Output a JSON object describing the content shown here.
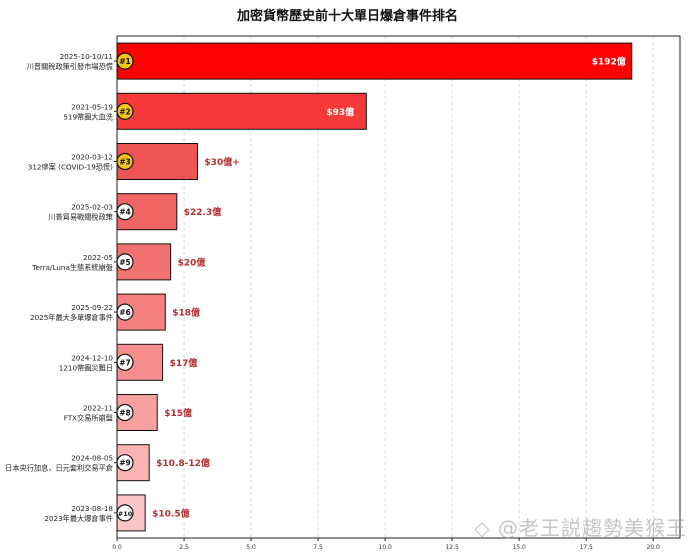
{
  "chart_data": {
    "type": "bar",
    "orientation": "horizontal",
    "title": "加密貨幣歷史前十大單日爆倉事件排名",
    "xlabel": "",
    "ylabel": "",
    "xlim": [
      0,
      21
    ],
    "xticks": [
      0,
      2.5,
      5,
      7.5,
      10,
      12.5,
      15,
      17.5,
      20
    ],
    "xtick_labels": [
      "0.0",
      "2.5",
      "5.0",
      "7.5",
      "10.0",
      "12.5",
      "15.0",
      "17.5",
      "20.0"
    ],
    "grid": "vertical dashed",
    "categories": [
      {
        "date": "2025-10-10/11",
        "event": "川普關稅政策引發市場恐慌",
        "rank": "#1",
        "value": 19.2,
        "label": "$192億",
        "color": "#ff0000"
      },
      {
        "date": "2021-05-19",
        "event": "519幣圈大血洗",
        "rank": "#2",
        "value": 9.3,
        "label": "$93億",
        "color": "#f63a3a"
      },
      {
        "date": "2020-03-12",
        "event": "312慘案 (COVID-19恐慌)",
        "rank": "#3",
        "value": 3.0,
        "label": "$30億+",
        "color": "#ee5454"
      },
      {
        "date": "2025-02-03",
        "event": "川普貿易戰關稅政策",
        "rank": "#4",
        "value": 2.23,
        "label": "$22.3億",
        "color": "#f06464"
      },
      {
        "date": "2022-05",
        "event": "Terra/Luna生態系統崩盤",
        "rank": "#5",
        "value": 2.0,
        "label": "$20億",
        "color": "#f27272"
      },
      {
        "date": "2025-09-22",
        "event": "2025年最大多單爆倉事件",
        "rank": "#6",
        "value": 1.8,
        "label": "$18億",
        "color": "#f48080"
      },
      {
        "date": "2024-12-10",
        "event": "1210幣圈災難日",
        "rank": "#7",
        "value": 1.7,
        "label": "$17億",
        "color": "#f68e8e"
      },
      {
        "date": "2022-11",
        "event": "FTX交易所崩盤",
        "rank": "#8",
        "value": 1.5,
        "label": "$15億",
        "color": "#f8a0a0"
      },
      {
        "date": "2024-08-05",
        "event": "日本央行加息，日元套利交易平倉",
        "rank": "#9",
        "value": 1.2,
        "label": "$10.8-12億",
        "color": "#fab2b2"
      },
      {
        "date": "2023-08-18",
        "event": "2023年最大爆倉事件",
        "rank": "#10",
        "value": 1.05,
        "label": "$10.5億",
        "color": "#fcc6c6"
      }
    ]
  },
  "watermark": "◇ @老王説趨勢美猴王",
  "colors": {
    "top3_badge": "#f5c518",
    "other_badge": "#ffffff",
    "value_label_outside": "#b03030",
    "value_label_inside": "#ffffff"
  }
}
